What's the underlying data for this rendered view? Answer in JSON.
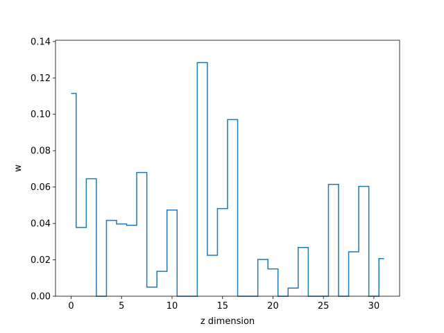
{
  "chart_data": {
    "type": "line",
    "drawstyle": "steps-mid",
    "xlabel": "z dimension",
    "ylabel": "w",
    "xlim": [
      -1.55,
      32.55
    ],
    "ylim": [
      0,
      0.1407
    ],
    "xticks": [
      0,
      5,
      10,
      15,
      20,
      25,
      30
    ],
    "xtick_labels": [
      "0",
      "5",
      "10",
      "15",
      "20",
      "25",
      "30"
    ],
    "yticks": [
      0,
      0.02,
      0.04,
      0.06,
      0.08,
      0.1,
      0.12,
      0.14
    ],
    "ytick_labels": [
      "0.00",
      "0.02",
      "0.04",
      "0.06",
      "0.08",
      "0.10",
      "0.12",
      "0.14"
    ],
    "grid": false,
    "legend": "none",
    "line_color": "#1f77b4",
    "x": [
      0,
      1,
      2,
      3,
      4,
      5,
      6,
      7,
      8,
      9,
      10,
      11,
      12,
      13,
      14,
      15,
      16,
      17,
      18,
      19,
      20,
      21,
      22,
      23,
      24,
      25,
      26,
      27,
      28,
      29,
      30,
      31
    ],
    "values": [
      0.1115,
      0.0378,
      0.0646,
      0.0,
      0.0417,
      0.0397,
      0.039,
      0.068,
      0.005,
      0.0137,
      0.0474,
      0.0,
      0.0,
      0.1284,
      0.0225,
      0.0482,
      0.0971,
      0.0,
      0.0,
      0.0202,
      0.015,
      0.0,
      0.0045,
      0.0268,
      0.0,
      0.0,
      0.0615,
      0.0,
      0.0244,
      0.0604,
      0.0,
      0.0207
    ]
  }
}
